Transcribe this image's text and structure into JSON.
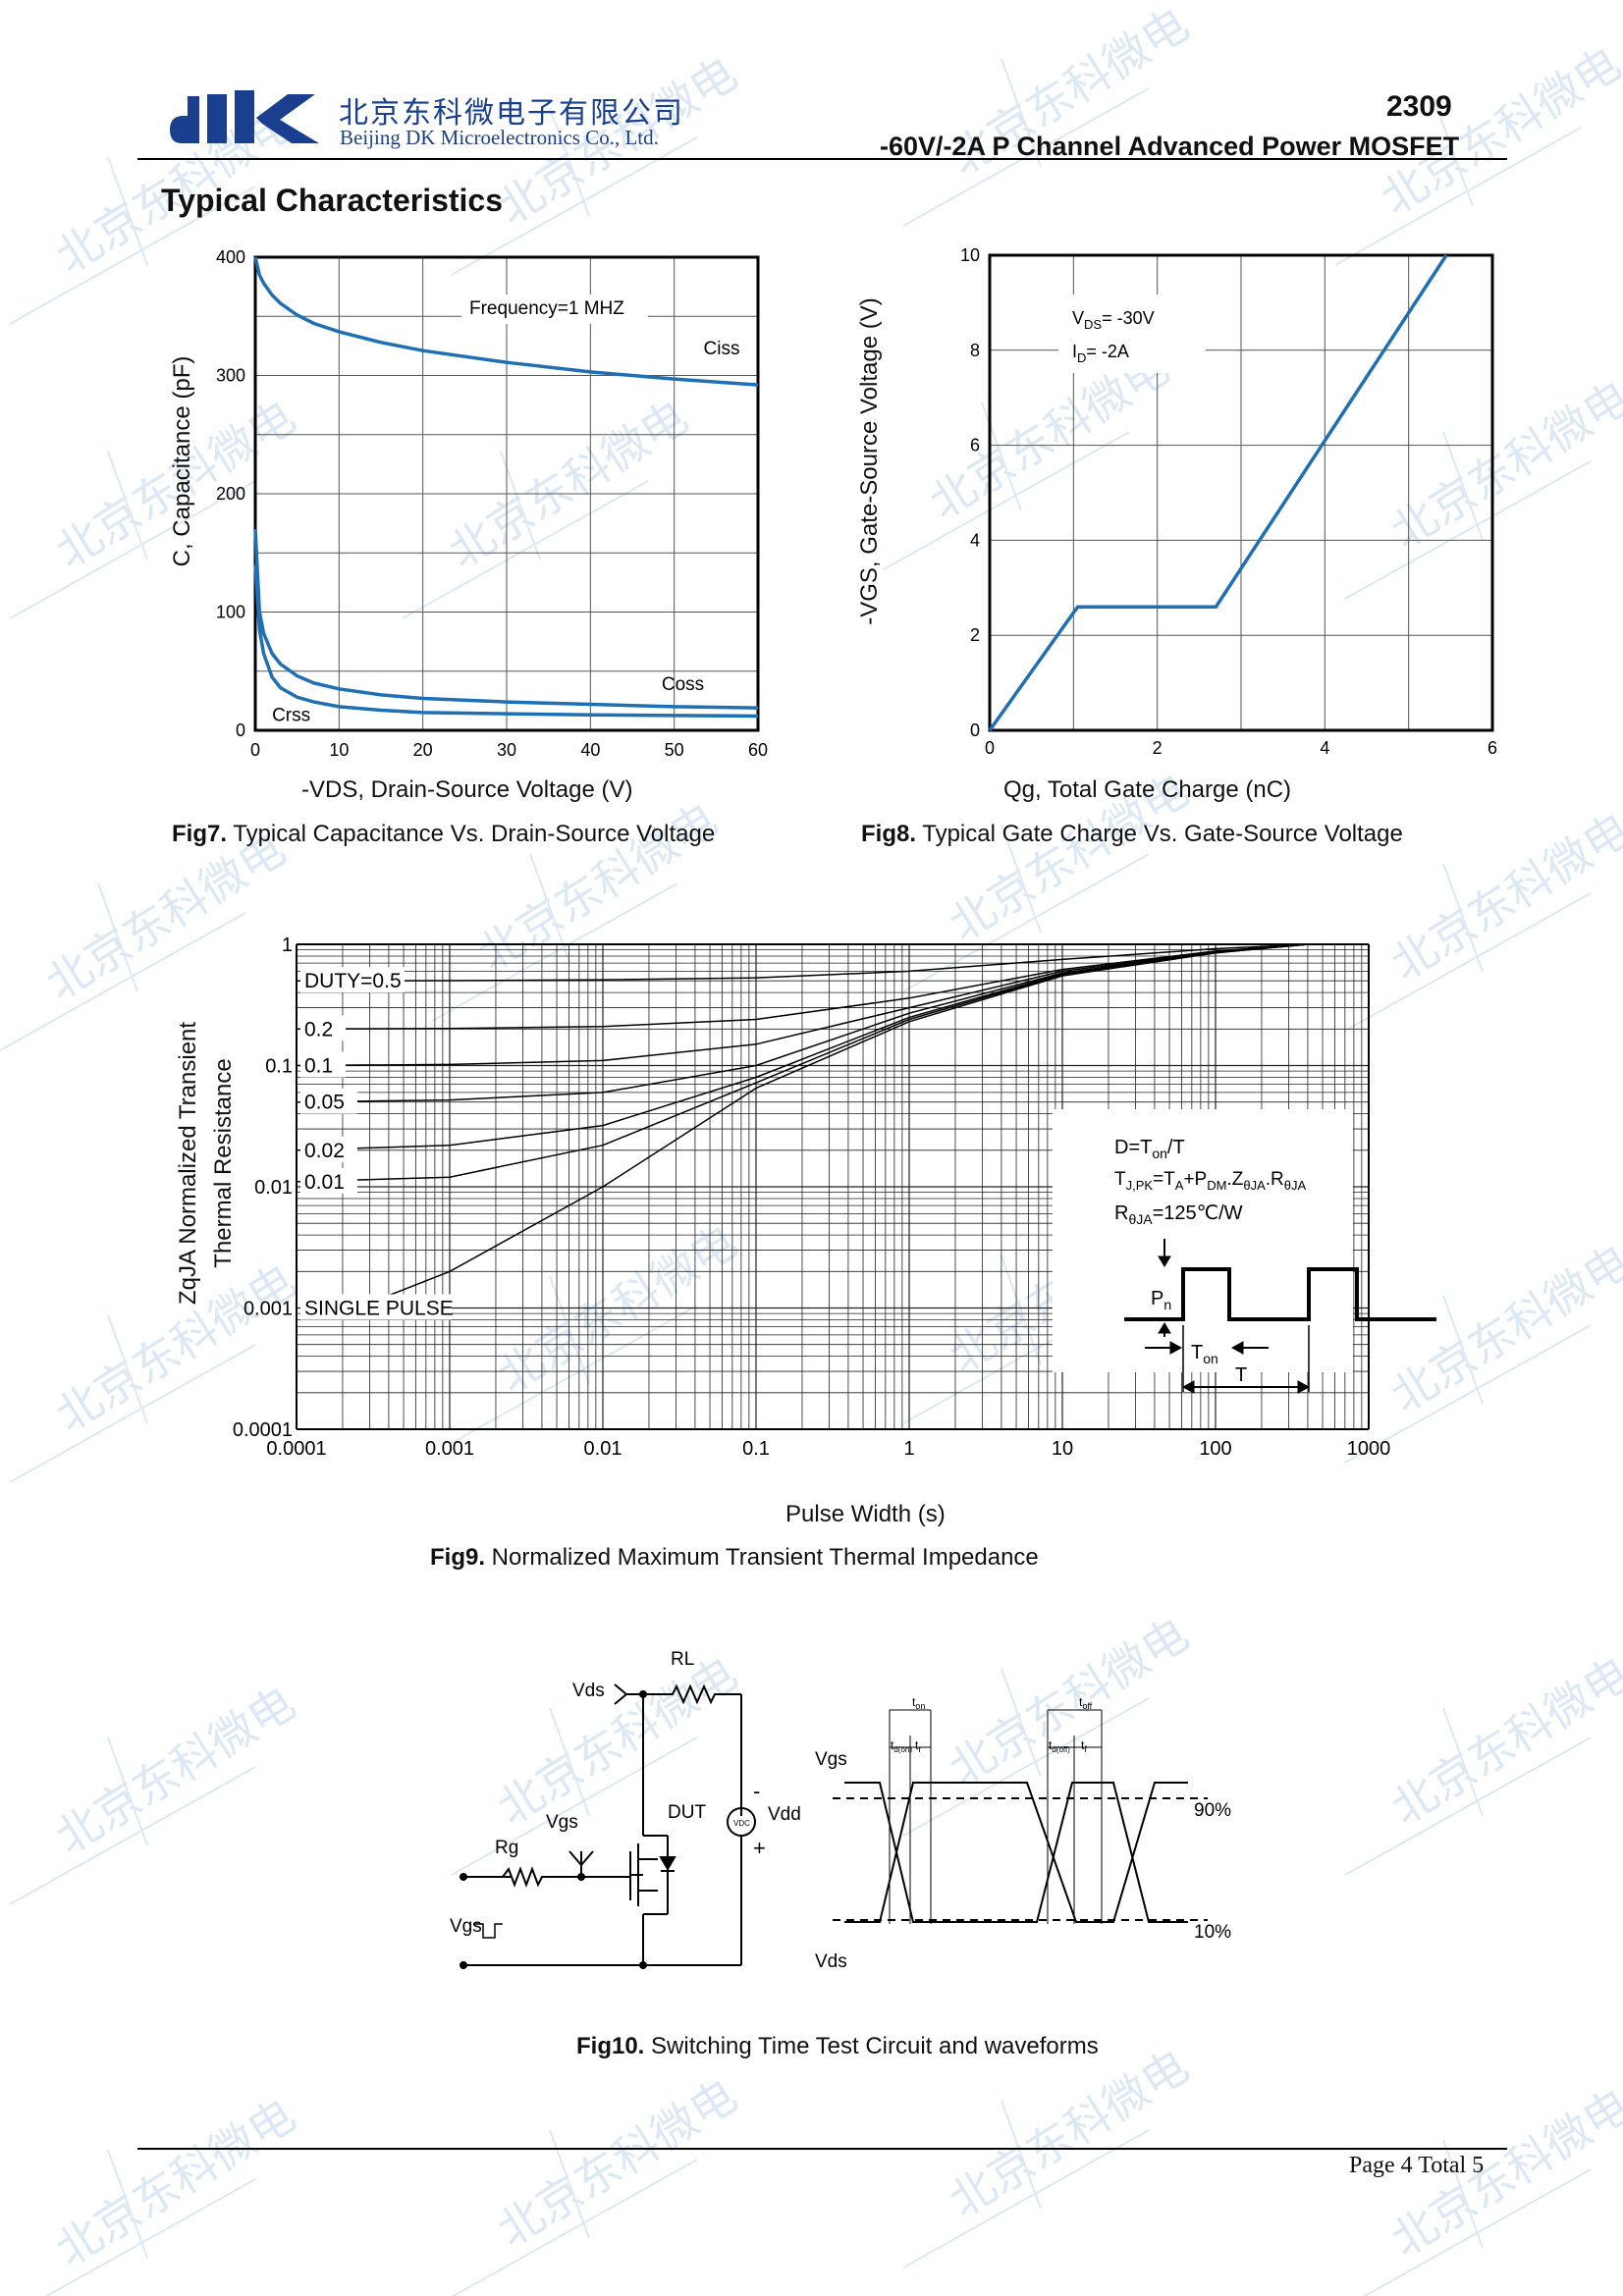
{
  "header": {
    "company_cn": "北京东科微电子有限公司",
    "company_en": "Beijing DK Microelectronics Co., Ltd.",
    "part_number": "2309",
    "part_description": "-60V/-2A P Channel Advanced Power MOSFET",
    "brand_color": "#1b3f8f"
  },
  "section_title": "Typical Characteristics",
  "fig7": {
    "caption_bold": "Fig7.",
    "caption": " Typical Capacitance Vs. Drain-Source Voltage",
    "annotation": "Frequency=1 MHZ",
    "xlabel": "-VDS, Drain-Source Voltage (V)",
    "ylabel": "C, Capacitance (pF)",
    "x_ticks": [
      "0",
      "10",
      "20",
      "30",
      "40",
      "50",
      "60"
    ],
    "y_ticks": [
      "0",
      "100",
      "200",
      "300",
      "400"
    ]
  },
  "fig8": {
    "caption_bold": "Fig8.",
    "caption": " Typical Gate Charge Vs. Gate-Source Voltage",
    "vds_note": "V",
    "vds_sub": "DS",
    "vds_val": "= -30V",
    "id_note": "I",
    "id_sub": "D",
    "id_val": "= -2A",
    "xlabel": "Qg, Total Gate Charge (nC)",
    "ylabel": "-VGS, Gate-Source Voltage (V)",
    "x_ticks": [
      "0",
      "2",
      "4",
      "6"
    ],
    "y_ticks": [
      "0",
      "2",
      "4",
      "6",
      "8",
      "10"
    ]
  },
  "fig9": {
    "caption_bold": "Fig9.",
    "caption": " Normalized Maximum Transient Thermal Impedance",
    "xlabel": "Pulse Width (s)",
    "ylabel_line1": "ZqJA Normalized Transient",
    "ylabel_line2": "Thermal Resistance",
    "x_ticks": [
      "0.0001",
      "0.001",
      "0.01",
      "0.1",
      "1",
      "10",
      "100",
      "1000"
    ],
    "y_ticks": [
      "0.0001",
      "0.001",
      "0.01",
      "0.1",
      "1"
    ],
    "eq1": "D=T",
    "eq1_sub": "on",
    "eq1_end": "/T",
    "eq2_a": "T",
    "eq2_a_sub": "J,PK",
    "eq2_b": "=T",
    "eq2_b_sub": "A",
    "eq2_c": "+P",
    "eq2_c_sub": "DM",
    "eq2_d": ".Z",
    "eq2_d_sub": "θJA",
    "eq2_e": ".R",
    "eq2_e_sub": "θJA",
    "eq3_a": "R",
    "eq3_a_sub": "θJA",
    "eq3_b": "=125℃/W",
    "pn": "P",
    "pn_sub": "n",
    "ton": "T",
    "ton_sub": "on",
    "t": "T"
  },
  "fig10": {
    "caption_bold": "Fig10.",
    "caption": " Switching Time Test Circuit and waveforms",
    "vds": "Vds",
    "rl": "RL",
    "dut": "DUT",
    "vdd": "Vdd",
    "vdc": "VDC",
    "minus": "-",
    "plus": "+",
    "vgs_gate": "Vgs",
    "rg": "Rg",
    "vgs_pulse": "Vgs",
    "wave_vgs": "Vgs",
    "wave_vds": "Vds",
    "pct90": "90%",
    "pct10": "10%",
    "ton": "t",
    "ton_sub": "on",
    "tdon": "t",
    "tdon_sub": "d(on)",
    "tr": "t",
    "tr_sub": "r",
    "toff": "t",
    "toff_sub": "off",
    "tdoff": "t",
    "tdoff_sub": "d(off)",
    "tf": "t",
    "tf_sub": "f"
  },
  "footer": {
    "page": "Page  4  Total  5"
  },
  "chart_data": [
    {
      "type": "line",
      "title": "",
      "xlabel": "-VDS, Drain-Source Voltage (V)",
      "ylabel": "C, Capacitance (pF)",
      "xlim": [
        0,
        60
      ],
      "ylim": [
        0,
        400
      ],
      "grid": true,
      "annotation": "Frequency=1 MHZ",
      "x": [
        0,
        0.5,
        1,
        2,
        3,
        5,
        7,
        10,
        15,
        20,
        30,
        40,
        50,
        60
      ],
      "series": [
        {
          "name": "Ciss",
          "values": [
            400,
            385,
            378,
            368,
            361,
            351,
            344,
            337,
            328,
            321,
            311,
            303,
            297,
            292
          ]
        },
        {
          "name": "Coss",
          "values": [
            170,
            100,
            82,
            65,
            56,
            46,
            40,
            35,
            30,
            27,
            24,
            22,
            20,
            19
          ]
        },
        {
          "name": "Crss",
          "values": [
            140,
            85,
            65,
            45,
            36,
            28,
            24,
            20,
            17,
            15,
            14,
            13,
            12.5,
            12
          ]
        }
      ],
      "color": "#1f6fb3"
    },
    {
      "type": "line",
      "title": "",
      "xlabel": "Qg, Total Gate Charge (nC)",
      "ylabel": "-VGS, Gate-Source Voltage (V)",
      "xlim": [
        0,
        6
      ],
      "ylim": [
        0,
        10
      ],
      "grid": true,
      "x": [
        0,
        1.05,
        2.7,
        5.45
      ],
      "series": [
        {
          "values": [
            0,
            2.6,
            2.6,
            10
          ]
        }
      ],
      "color": "#1f6fb3"
    },
    {
      "type": "line",
      "title": "",
      "xlabel": "Pulse Width (s)",
      "ylabel": "ZqJA Normalized Transient Thermal Resistance",
      "x_scale": "log",
      "y_scale": "log",
      "xlim": [
        0.0001,
        1000
      ],
      "ylim": [
        0.0001,
        1
      ],
      "grid": true,
      "x": [
        0.0001,
        0.001,
        0.01,
        0.1,
        1,
        10,
        100,
        400
      ],
      "series": [
        {
          "name": "DUTY=0.5",
          "values": [
            0.5,
            0.502,
            0.51,
            0.53,
            0.6,
            0.75,
            0.92,
            1.0
          ]
        },
        {
          "name": "0.2",
          "values": [
            0.2,
            0.202,
            0.21,
            0.24,
            0.36,
            0.62,
            0.88,
            1.0
          ]
        },
        {
          "name": "0.1",
          "values": [
            0.1,
            0.102,
            0.11,
            0.15,
            0.3,
            0.6,
            0.87,
            1.0
          ]
        },
        {
          "name": "0.05",
          "values": [
            0.05,
            0.052,
            0.06,
            0.1,
            0.27,
            0.58,
            0.86,
            1.0
          ]
        },
        {
          "name": "0.02",
          "values": [
            0.02,
            0.022,
            0.032,
            0.08,
            0.25,
            0.57,
            0.86,
            1.0
          ]
        },
        {
          "name": "0.01",
          "values": [
            0.011,
            0.012,
            0.022,
            0.072,
            0.24,
            0.56,
            0.85,
            1.0
          ]
        },
        {
          "name": "SINGLE PULSE",
          "values": [
            null,
            0.002,
            0.01,
            0.065,
            0.23,
            0.55,
            0.85,
            1.0
          ]
        }
      ]
    }
  ]
}
